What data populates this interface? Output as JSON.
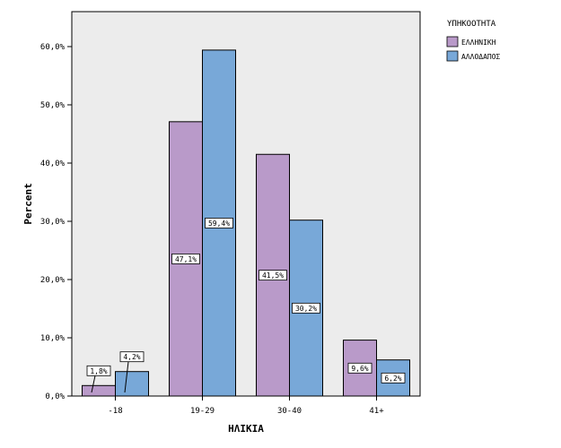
{
  "chart_data": {
    "type": "bar",
    "title": "",
    "xlabel": "ΗΛΙΚΙΑ",
    "ylabel": "Percent",
    "categories": [
      "-18",
      "19-29",
      "30-40",
      "41+"
    ],
    "ylim": [
      0,
      66
    ],
    "yticks": [
      0,
      10,
      20,
      30,
      40,
      50,
      60
    ],
    "ytick_labels": [
      "0,0%",
      "10,0%",
      "20,0%",
      "30,0%",
      "40,0%",
      "50,0%",
      "60,0%"
    ],
    "grid": false,
    "legend": {
      "title": "ΥΠΗΚΟΟΤΗΤΑ",
      "placement": "right"
    },
    "series": [
      {
        "name": "ΕΛΛΗΝΙΚΗ",
        "color": "#b99ac9",
        "values": [
          1.8,
          47.1,
          41.5,
          9.6
        ],
        "labels": [
          "1,8%",
          "47,1%",
          "41,5%",
          "9,6%"
        ]
      },
      {
        "name": "ΑΛΛΟΔΑΠΟΣ",
        "color": "#78a8d8",
        "values": [
          4.2,
          59.4,
          30.2,
          6.2
        ],
        "labels": [
          "4,2%",
          "59,4%",
          "30,2%",
          "6,2%"
        ]
      }
    ],
    "plot_background": "#ececec"
  }
}
